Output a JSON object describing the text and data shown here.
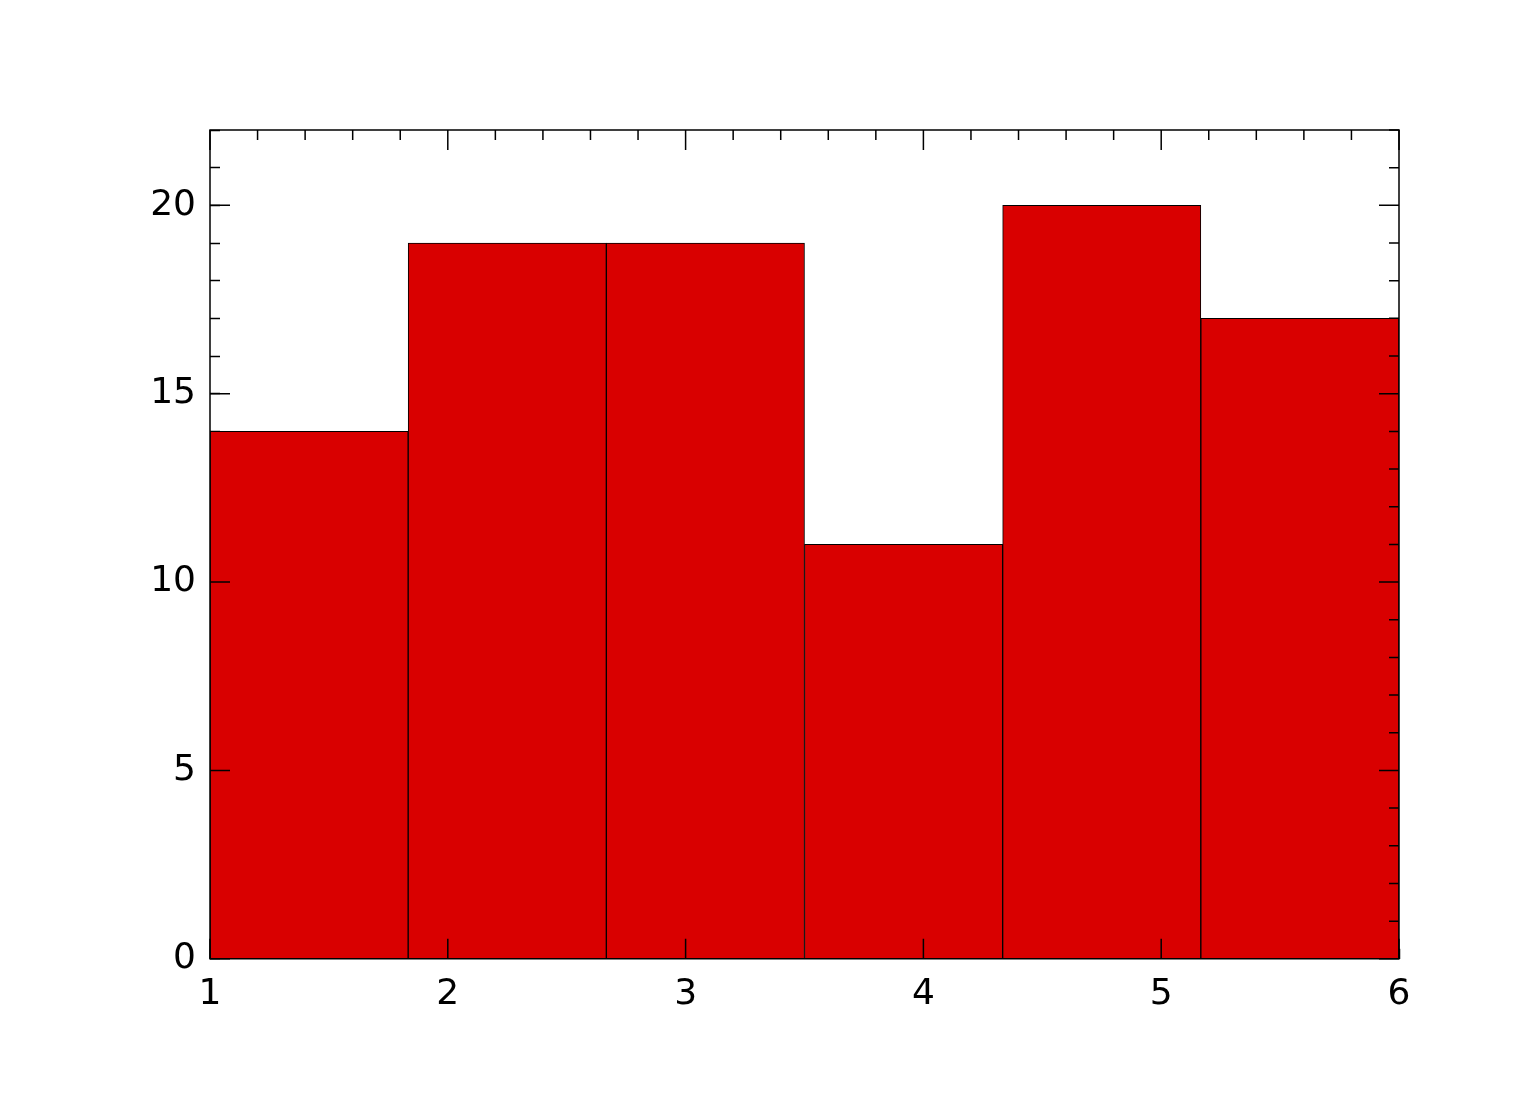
{
  "chart_data": {
    "type": "histogram",
    "bins": [
      1,
      1.8333,
      2.6667,
      3.5,
      4.3333,
      5.1667,
      6
    ],
    "values": [
      14,
      19,
      19,
      11,
      20,
      17
    ],
    "color": "#d90000",
    "xlim": [
      1,
      6
    ],
    "ylim": [
      0,
      22
    ],
    "xticks": [
      1,
      {
        "value": 1.2,
        "label": null
      },
      {
        "value": 1.4,
        "label": null
      },
      {
        "value": 1.6,
        "label": null
      },
      {
        "value": 1.8,
        "label": null
      },
      2,
      {
        "value": 2.2,
        "label": null
      },
      {
        "value": 2.4,
        "label": null
      },
      {
        "value": 2.6,
        "label": null
      },
      {
        "value": 2.8,
        "label": null
      },
      3,
      {
        "value": 3.2,
        "label": null
      },
      {
        "value": 3.4,
        "label": null
      },
      {
        "value": 3.6,
        "label": null
      },
      {
        "value": 3.8,
        "label": null
      },
      4,
      {
        "value": 4.2,
        "label": null
      },
      {
        "value": 4.4,
        "label": null
      },
      {
        "value": 4.6,
        "label": null
      },
      {
        "value": 4.8,
        "label": null
      },
      5,
      {
        "value": 5.2,
        "label": null
      },
      {
        "value": 5.4,
        "label": null
      },
      {
        "value": 5.6,
        "label": null
      },
      {
        "value": 5.8,
        "label": null
      },
      6
    ],
    "yticks": [
      0,
      {
        "value": 1,
        "label": null
      },
      {
        "value": 2,
        "label": null
      },
      {
        "value": 3,
        "label": null
      },
      {
        "value": 4,
        "label": null
      },
      5,
      {
        "value": 6,
        "label": null
      },
      {
        "value": 7,
        "label": null
      },
      {
        "value": 8,
        "label": null
      },
      {
        "value": 9,
        "label": null
      },
      10,
      {
        "value": 11,
        "label": null
      },
      {
        "value": 12,
        "label": null
      },
      {
        "value": 13,
        "label": null
      },
      {
        "value": 14,
        "label": null
      },
      15,
      {
        "value": 16,
        "label": null
      },
      {
        "value": 17,
        "label": null
      },
      {
        "value": 18,
        "label": null
      },
      {
        "value": 19,
        "label": null
      },
      20,
      {
        "value": 21,
        "label": null
      },
      {
        "value": 22,
        "label": null
      }
    ],
    "grid": false,
    "legend": false
  }
}
